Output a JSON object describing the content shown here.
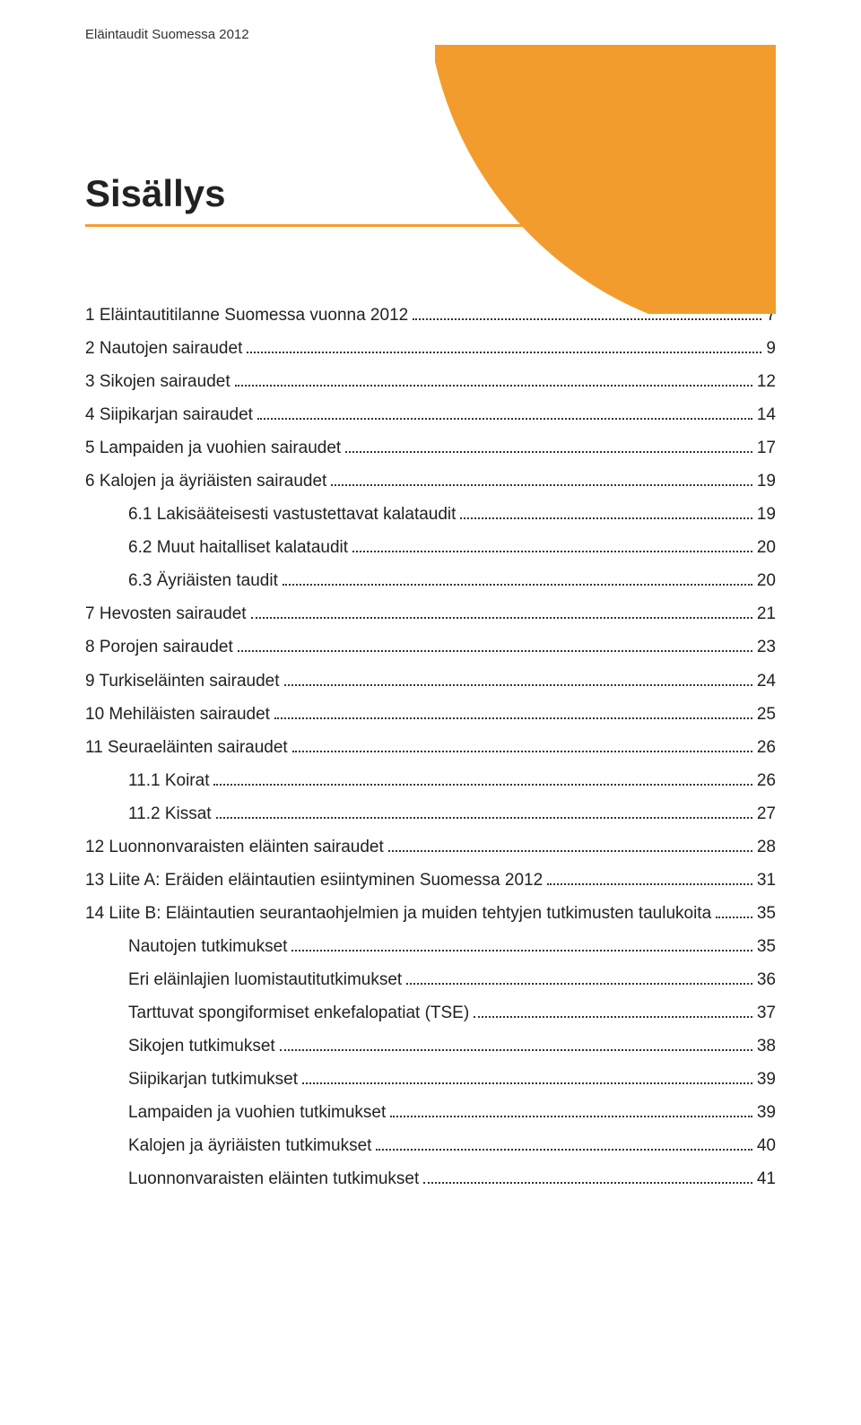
{
  "header": "Eläintaudit Suomessa 2012",
  "title": "Sisällys",
  "colors": {
    "accent": "#f39c2e",
    "text": "#222222",
    "header_text": "#333333",
    "leader": "#333333",
    "background": "#ffffff"
  },
  "typography": {
    "header_fontsize": 15,
    "title_fontsize": 42,
    "toc_fontsize": 19,
    "line_height": 1.95
  },
  "toc": [
    {
      "label": "1 Eläintautitilanne Suomessa vuonna 2012",
      "page": "7",
      "indent": 0
    },
    {
      "label": "2 Nautojen sairaudet",
      "page": "9",
      "indent": 0
    },
    {
      "label": "3 Sikojen sairaudet",
      "page": "12",
      "indent": 0
    },
    {
      "label": "4 Siipikarjan sairaudet",
      "page": "14",
      "indent": 0
    },
    {
      "label": "5 Lampaiden ja vuohien sairaudet",
      "page": "17",
      "indent": 0
    },
    {
      "label": "6 Kalojen ja äyriäisten sairaudet",
      "page": "19",
      "indent": 0
    },
    {
      "label": "6.1 Lakisääteisesti vastustettavat kalataudit",
      "page": "19",
      "indent": 1
    },
    {
      "label": "6.2 Muut haitalliset kalataudit",
      "page": "20",
      "indent": 1
    },
    {
      "label": "6.3 Äyriäisten taudit",
      "page": "20",
      "indent": 1
    },
    {
      "label": "7 Hevosten sairaudet",
      "page": "21",
      "indent": 0
    },
    {
      "label": "8 Porojen sairaudet",
      "page": "23",
      "indent": 0
    },
    {
      "label": "9 Turkiseläinten sairaudet",
      "page": "24",
      "indent": 0
    },
    {
      "label": "10 Mehiläisten sairaudet",
      "page": "25",
      "indent": 0
    },
    {
      "label": "11 Seuraeläinten sairaudet",
      "page": "26",
      "indent": 0
    },
    {
      "label": "11.1 Koirat",
      "page": "26",
      "indent": 1
    },
    {
      "label": "11.2 Kissat",
      "page": "27",
      "indent": 1
    },
    {
      "label": "12 Luonnonvaraisten eläinten sairaudet",
      "page": "28",
      "indent": 0
    },
    {
      "label": "13 Liite A: Eräiden eläintautien esiintyminen Suomessa 2012",
      "page": "31",
      "indent": 0
    },
    {
      "label": "14 Liite B: Eläintautien seurantaohjelmien ja muiden tehtyjen tutkimusten taulukoita",
      "page": "35",
      "indent": 0
    },
    {
      "label": "Nautojen tutkimukset",
      "page": "35",
      "indent": 1
    },
    {
      "label": "Eri eläinlajien luomistautitutkimukset",
      "page": "36",
      "indent": 1
    },
    {
      "label": "Tarttuvat spongiformiset enkefalopatiat (TSE)",
      "page": "37",
      "indent": 1
    },
    {
      "label": "Sikojen tutkimukset",
      "page": "38",
      "indent": 1
    },
    {
      "label": "Siipikarjan tutkimukset",
      "page": "39",
      "indent": 1
    },
    {
      "label": "Lampaiden ja vuohien tutkimukset",
      "page": "39",
      "indent": 1
    },
    {
      "label": "Kalojen ja äyriäisten tutkimukset",
      "page": "40",
      "indent": 1
    },
    {
      "label": "Luonnonvaraisten eläinten tutkimukset",
      "page": "41",
      "indent": 1
    }
  ]
}
